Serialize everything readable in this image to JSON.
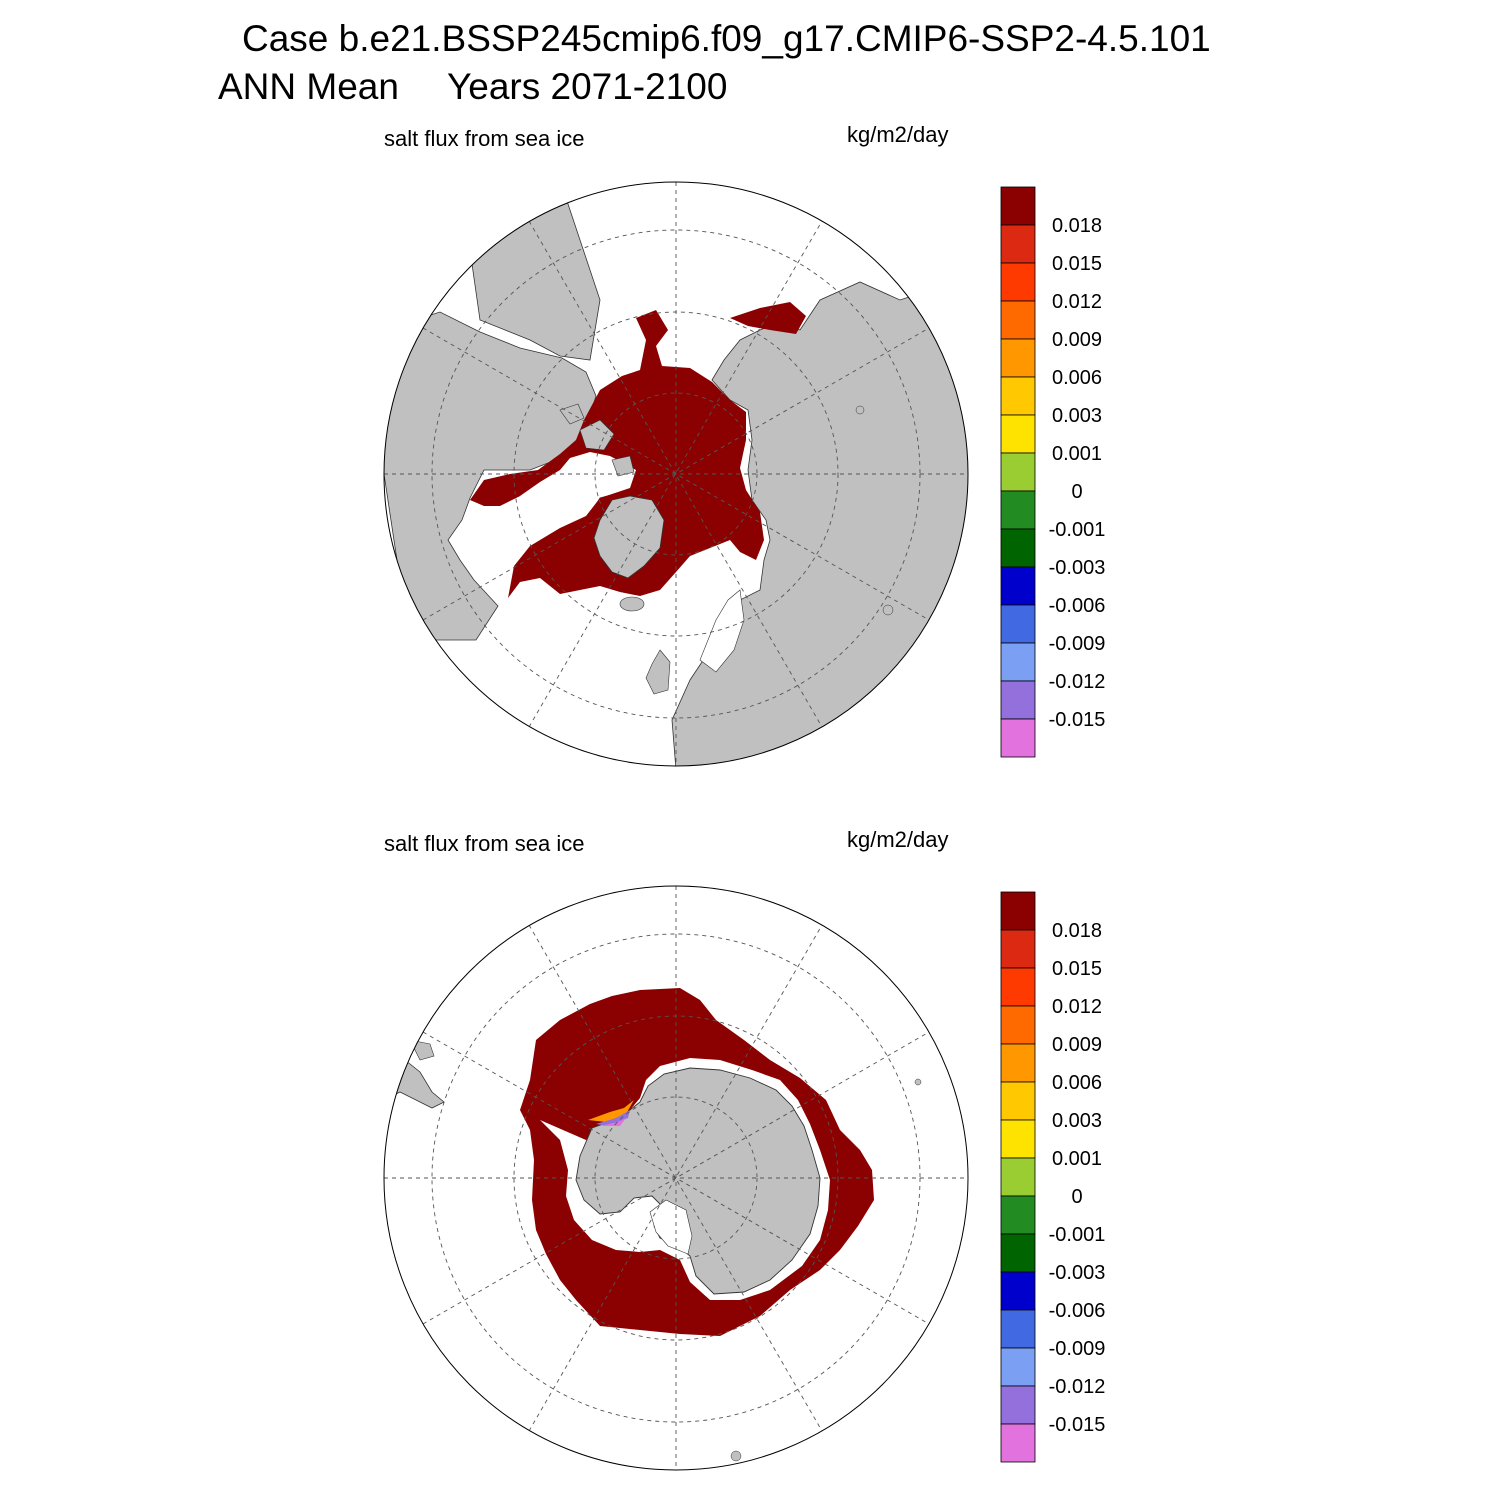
{
  "title": {
    "case": "Case b.e21.BSSP245cmip6.f09_g17.CMIP6-SSP2-4.5.101",
    "season": "ANN Mean",
    "years": "Years 2071-2100"
  },
  "panels": [
    {
      "id": "north",
      "variable": "salt flux from sea ice",
      "units": "kg/m2/day"
    },
    {
      "id": "south",
      "variable": "salt flux from sea ice",
      "units": "kg/m2/day"
    }
  ],
  "colorbar": {
    "colors": [
      "#e272de",
      "#9370db",
      "#7b9ff2",
      "#4169e1",
      "#0000cd",
      "#006400",
      "#228b22",
      "#9acd32",
      "#ffe300",
      "#ffc800",
      "#ff9800",
      "#ff6a00",
      "#ff3a00",
      "#dc2a12",
      "#8b0000"
    ],
    "labels": [
      "-0.015",
      "-0.012",
      "-0.009",
      "-0.006",
      "-0.003",
      "-0.001",
      "0",
      "0.001",
      "0.003",
      "0.006",
      "0.009",
      "0.012",
      "0.015",
      "0.018"
    ]
  },
  "colors": {
    "land": "#c0c0c0",
    "ice_flux": "#8b0000",
    "ocean": "#ffffff"
  }
}
